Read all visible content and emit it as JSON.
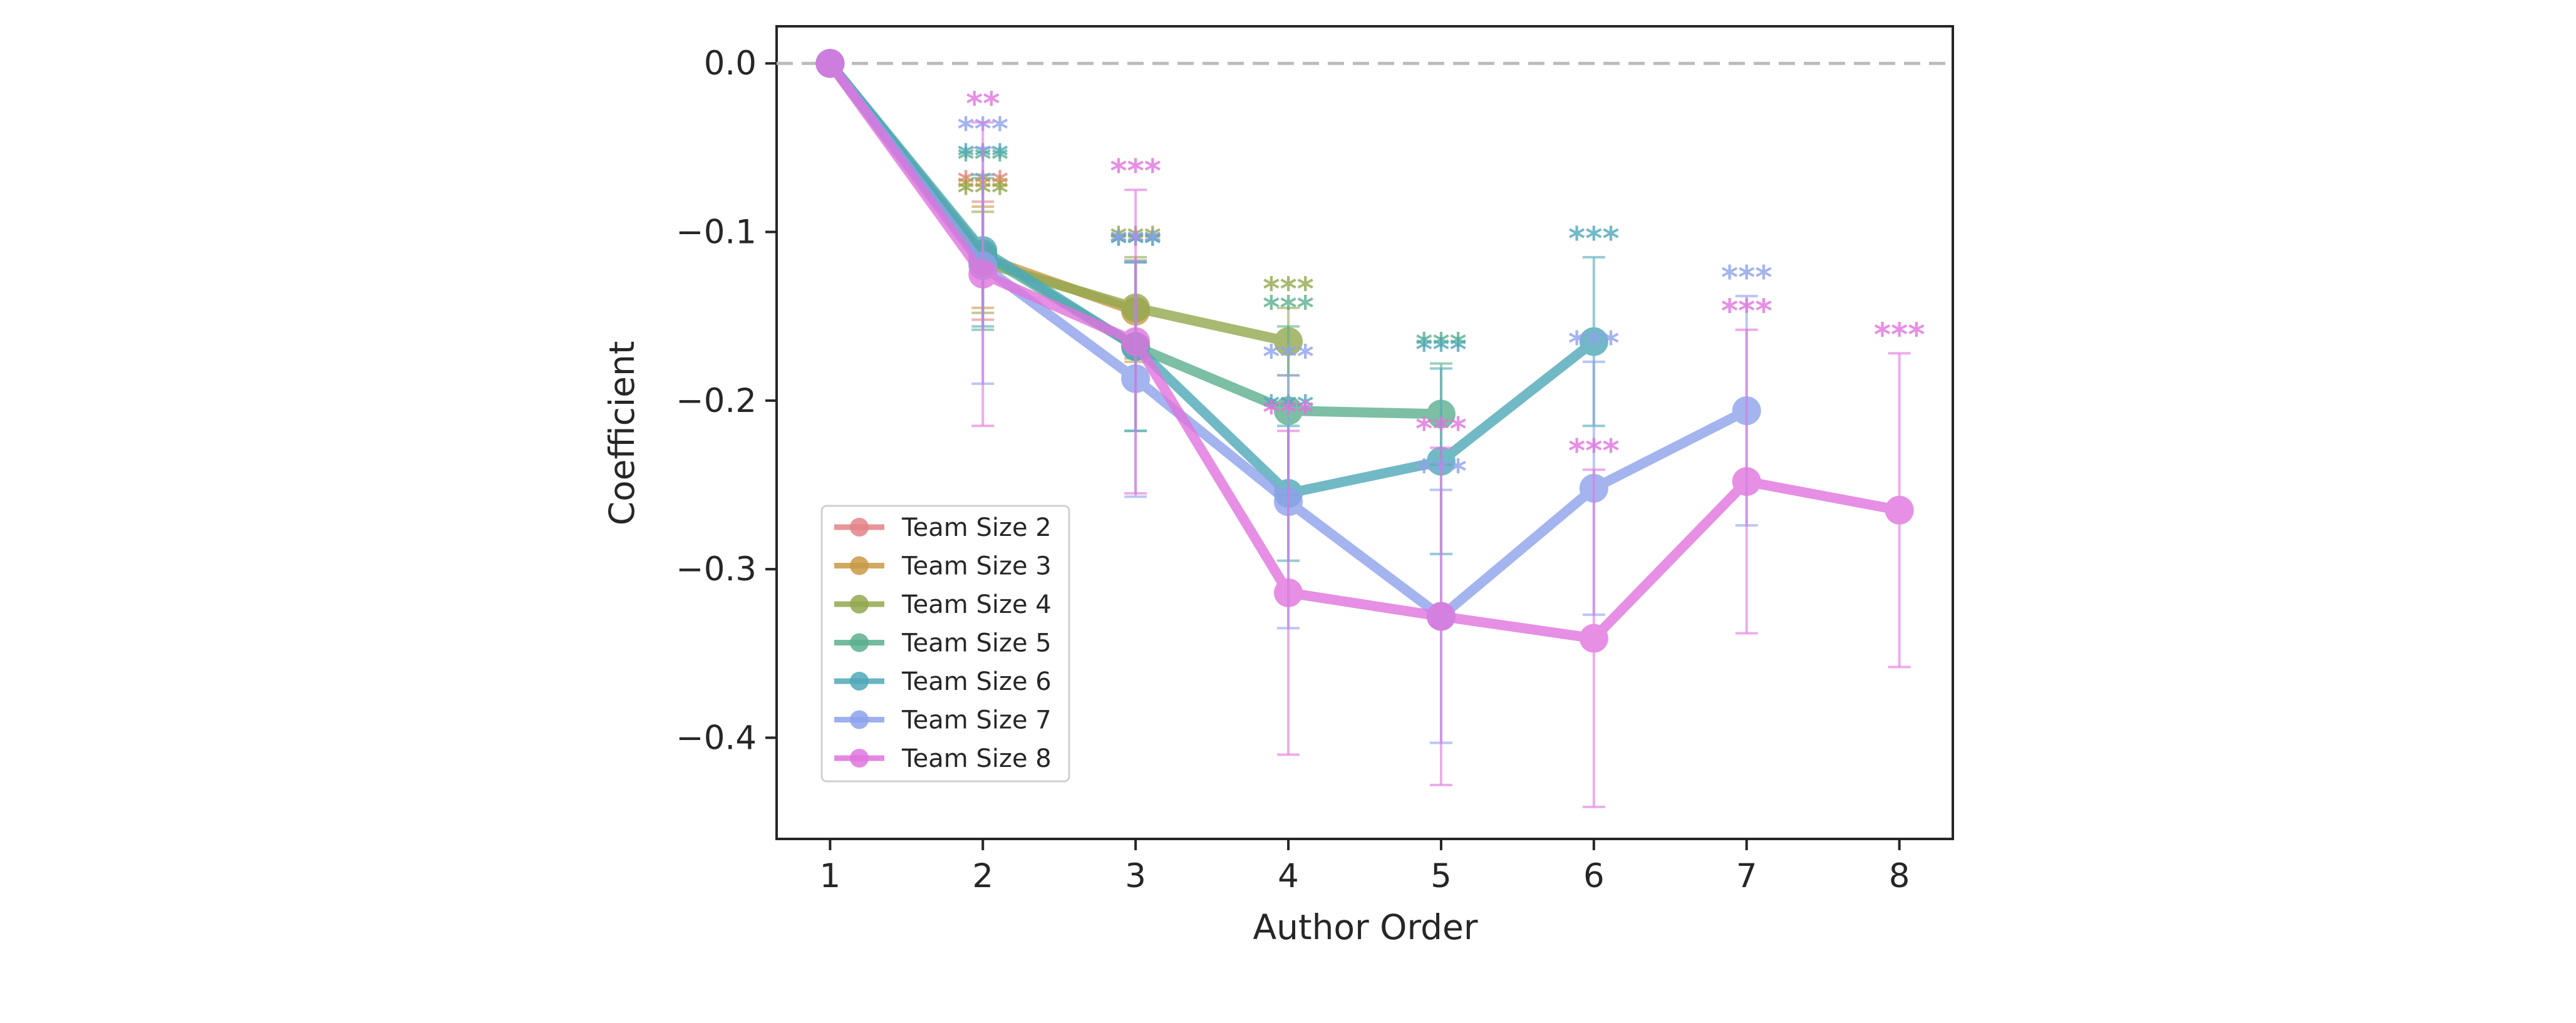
{
  "chart_data": {
    "type": "line",
    "xlabel": "Author Order",
    "ylabel": "Coefficient",
    "xlim": [
      0.65,
      8.35
    ],
    "ylim": [
      -0.46,
      0.022
    ],
    "x_ticks": [
      1,
      2,
      3,
      4,
      5,
      6,
      7,
      8
    ],
    "y_ticks": [
      0.0,
      -0.1,
      -0.2,
      -0.3,
      -0.4
    ],
    "y_tick_labels": [
      "0.0",
      "−0.1",
      "−0.2",
      "−0.3",
      "−0.4"
    ],
    "reference_line": {
      "y": 0.0,
      "style": "dashed",
      "color": "#bbbbbb"
    },
    "grid": false,
    "legend": {
      "placement": "lower-left"
    },
    "series": [
      {
        "name": "Team Size 2",
        "color": "#e38489",
        "points": [
          {
            "x": 1,
            "y": 0.0
          },
          {
            "x": 2,
            "y": -0.117,
            "err": 0.035,
            "sig": "***"
          }
        ]
      },
      {
        "name": "Team Size 3",
        "color": "#c99a45",
        "points": [
          {
            "x": 1,
            "y": 0.0
          },
          {
            "x": 2,
            "y": -0.115,
            "err": 0.03,
            "sig": "***"
          },
          {
            "x": 3,
            "y": -0.147,
            "err": 0.03,
            "sig": "***"
          }
        ]
      },
      {
        "name": "Team Size 4",
        "color": "#93a84e",
        "points": [
          {
            "x": 1,
            "y": 0.0
          },
          {
            "x": 2,
            "y": -0.118,
            "err": 0.03,
            "sig": "***"
          },
          {
            "x": 3,
            "y": -0.145,
            "err": 0.03,
            "sig": "***"
          },
          {
            "x": 4,
            "y": -0.165,
            "err": 0.02,
            "sig": "***"
          }
        ]
      },
      {
        "name": "Team Size 5",
        "color": "#5caf8e",
        "points": [
          {
            "x": 1,
            "y": 0.0
          },
          {
            "x": 2,
            "y": -0.113,
            "err": 0.045,
            "sig": "***"
          },
          {
            "x": 3,
            "y": -0.168,
            "err": 0.05,
            "sig": "***"
          },
          {
            "x": 4,
            "y": -0.206,
            "err": 0.05,
            "sig": "***"
          },
          {
            "x": 5,
            "y": -0.208,
            "err": 0.03,
            "sig": "***"
          }
        ]
      },
      {
        "name": "Team Size 6",
        "color": "#4fa8b8",
        "points": [
          {
            "x": 1,
            "y": 0.0
          },
          {
            "x": 2,
            "y": -0.111,
            "err": 0.045,
            "sig": "***"
          },
          {
            "x": 3,
            "y": -0.168,
            "err": 0.05,
            "sig": "***"
          },
          {
            "x": 4,
            "y": -0.255,
            "err": 0.04,
            "sig": "***"
          },
          {
            "x": 5,
            "y": -0.236,
            "err": 0.055,
            "sig": "***"
          },
          {
            "x": 6,
            "y": -0.165,
            "err": 0.05,
            "sig": "***"
          }
        ]
      },
      {
        "name": "Team Size 7",
        "color": "#8ea2ec",
        "points": [
          {
            "x": 1,
            "y": 0.0
          },
          {
            "x": 2,
            "y": -0.12,
            "err": 0.07,
            "sig": "***"
          },
          {
            "x": 3,
            "y": -0.187,
            "err": 0.07,
            "sig": "***"
          },
          {
            "x": 4,
            "y": -0.26,
            "err": 0.075,
            "sig": "***"
          },
          {
            "x": 5,
            "y": -0.328,
            "err": 0.075,
            "sig": "***"
          },
          {
            "x": 6,
            "y": -0.252,
            "err": 0.075,
            "sig": "***"
          },
          {
            "x": 7,
            "y": -0.206,
            "err": 0.068,
            "sig": "***"
          }
        ]
      },
      {
        "name": "Team Size 8",
        "color": "#e074de",
        "points": [
          {
            "x": 1,
            "y": 0.0
          },
          {
            "x": 2,
            "y": -0.125,
            "err": 0.09,
            "sig": "**"
          },
          {
            "x": 3,
            "y": -0.165,
            "err": 0.09,
            "sig": "***"
          },
          {
            "x": 4,
            "y": -0.314,
            "err": 0.096,
            "sig": "***"
          },
          {
            "x": 5,
            "y": -0.328,
            "err": 0.1,
            "sig": "***"
          },
          {
            "x": 6,
            "y": -0.341,
            "err": 0.1,
            "sig": "***"
          },
          {
            "x": 7,
            "y": -0.248,
            "err": 0.09,
            "sig": "***"
          },
          {
            "x": 8,
            "y": -0.265,
            "err": 0.093,
            "sig": "***"
          }
        ]
      }
    ]
  }
}
